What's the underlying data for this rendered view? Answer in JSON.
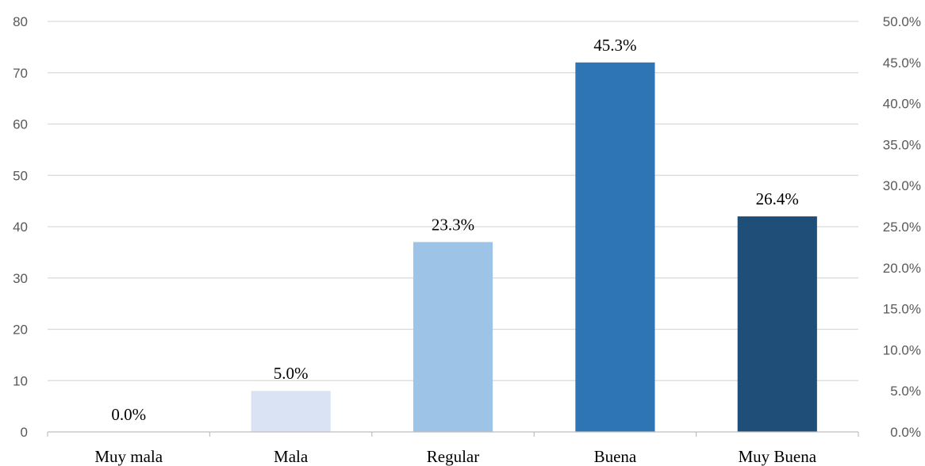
{
  "chart_data": {
    "type": "bar",
    "categories": [
      "Muy mala",
      "Mala",
      "Regular",
      "Buena",
      "Muy Buena"
    ],
    "values": [
      0,
      8,
      37,
      72,
      42
    ],
    "data_labels": [
      "0.0%",
      "5.0%",
      "23.3%",
      "45.3%",
      "26.4%"
    ],
    "colors": [
      "#dae3f3",
      "#dae3f3",
      "#9dc3e6",
      "#2e75b6",
      "#1f4e79"
    ],
    "ylim": [
      0,
      80
    ],
    "y_ticks": [
      "0",
      "10",
      "20",
      "30",
      "40",
      "50",
      "60",
      "70",
      "80"
    ],
    "y2lim": [
      0,
      50
    ],
    "y2_ticks": [
      "0.0%",
      "5.0%",
      "10.0%",
      "15.0%",
      "20.0%",
      "25.0%",
      "30.0%",
      "35.0%",
      "40.0%",
      "45.0%",
      "50.0%"
    ],
    "grid": true,
    "legend": "none"
  }
}
